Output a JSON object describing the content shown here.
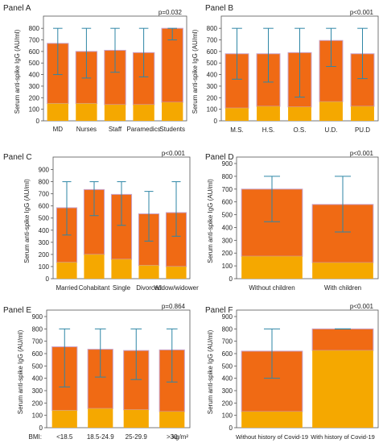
{
  "figure": {
    "colors": {
      "upper": "#F06A14",
      "lower": "#F5A800",
      "upper_edge": "#C8A0C8",
      "error": "#2E86A6",
      "axis": "#555555"
    }
  },
  "chart_data": [
    {
      "type": "bar",
      "panel_label": "Panel A",
      "title": "Panel A",
      "ylabel": "Serum anti-spike IgG (AU/ml)",
      "p_value": "p=0.032",
      "ylim": [
        0,
        850
      ],
      "yticks": [
        0,
        100,
        200,
        300,
        400,
        500,
        600,
        700,
        800
      ],
      "categories": [
        "MD",
        "Nurses",
        "Staff",
        "Paramedics",
        "Students"
      ],
      "series": [
        {
          "values": [
            150,
            150,
            140,
            140,
            160
          ]
        },
        {
          "values": [
            670,
            600,
            610,
            590,
            800
          ]
        }
      ],
      "error_bars": [
        [
          400,
          800
        ],
        [
          370,
          800
        ],
        [
          420,
          800
        ],
        [
          380,
          800
        ],
        [
          700,
          800
        ]
      ],
      "grid": false
    },
    {
      "type": "bar",
      "panel_label": "Panel B",
      "title": "Panel B",
      "ylabel": "Serum anti-spike IgG (AU/ml)",
      "p_value": "p<0.001",
      "ylim": [
        0,
        850
      ],
      "yticks": [
        0,
        100,
        200,
        300,
        400,
        500,
        600,
        700,
        800
      ],
      "categories": [
        "M.S.",
        "H.S.",
        "O.S.",
        "U.D.",
        "PU.D"
      ],
      "series": [
        {
          "values": [
            110,
            125,
            120,
            165,
            125
          ]
        },
        {
          "values": [
            580,
            580,
            590,
            695,
            580
          ]
        }
      ],
      "error_bars": [
        [
          360,
          800
        ],
        [
          335,
          800
        ],
        [
          205,
          800
        ],
        [
          470,
          800
        ],
        [
          365,
          800
        ]
      ],
      "grid": false
    },
    {
      "type": "bar",
      "panel_label": "Panel C",
      "title": "Panel C",
      "ylabel": "Serum anti-spike IgG (AU/ml)",
      "p_value": "p<0.001",
      "ylim": [
        0,
        950
      ],
      "yticks": [
        0,
        100,
        200,
        300,
        400,
        500,
        600,
        700,
        800,
        900
      ],
      "categories": [
        "Married",
        "Cohabitant",
        "Single",
        "Divorced",
        "Widow/widower"
      ],
      "series": [
        {
          "values": [
            135,
            200,
            160,
            110,
            100
          ]
        },
        {
          "values": [
            585,
            735,
            695,
            535,
            545
          ]
        }
      ],
      "error_bars": [
        [
          360,
          800
        ],
        [
          520,
          800
        ],
        [
          440,
          800
        ],
        [
          310,
          720
        ],
        [
          350,
          800
        ]
      ],
      "grid": false
    },
    {
      "type": "bar",
      "panel_label": "Panel D",
      "title": "Panel D",
      "ylabel": "Serum anti-spike IgG (AU/ml)",
      "p_value": "p<0.001",
      "ylim": [
        0,
        900
      ],
      "yticks": [
        0,
        100,
        200,
        300,
        400,
        500,
        600,
        700,
        800,
        900
      ],
      "categories": [
        "Without children",
        "With children"
      ],
      "series": [
        {
          "values": [
            175,
            125
          ]
        },
        {
          "values": [
            700,
            580
          ]
        }
      ],
      "error_bars": [
        [
          445,
          800
        ],
        [
          365,
          800
        ]
      ],
      "grid": false
    },
    {
      "type": "bar",
      "panel_label": "Panel E",
      "title": "Panel E",
      "ylabel": "Serum anti-spike IgG (AU/ml)",
      "xlabel_prefix": "BMI:",
      "xlabel_unit": "kg/m²",
      "p_value": "p=0.864",
      "ylim": [
        0,
        900
      ],
      "yticks": [
        0,
        100,
        200,
        300,
        400,
        500,
        600,
        700,
        800,
        900
      ],
      "categories": [
        "<18.5",
        "18.5-24.9",
        "25-29.9",
        ">30"
      ],
      "series": [
        {
          "values": [
            140,
            155,
            145,
            130
          ]
        },
        {
          "values": [
            655,
            635,
            625,
            630
          ]
        }
      ],
      "error_bars": [
        [
          330,
          800
        ],
        [
          410,
          800
        ],
        [
          390,
          800
        ],
        [
          370,
          800
        ]
      ],
      "grid": false
    },
    {
      "type": "bar",
      "panel_label": "Panel F",
      "title": "Panel F",
      "ylabel": "Serum anti-spike IgG (AU/ml)",
      "p_value": "p<0.001",
      "ylim": [
        0,
        900
      ],
      "yticks": [
        0,
        100,
        200,
        300,
        400,
        500,
        600,
        700,
        800,
        900
      ],
      "categories": [
        "Without history of Covid-19",
        "With history of Covid-19"
      ],
      "series": [
        {
          "values": [
            130,
            625
          ]
        },
        {
          "values": [
            620,
            800
          ]
        }
      ],
      "error_bars": [
        [
          400,
          800
        ],
        [
          800,
          800
        ]
      ],
      "grid": false
    }
  ]
}
